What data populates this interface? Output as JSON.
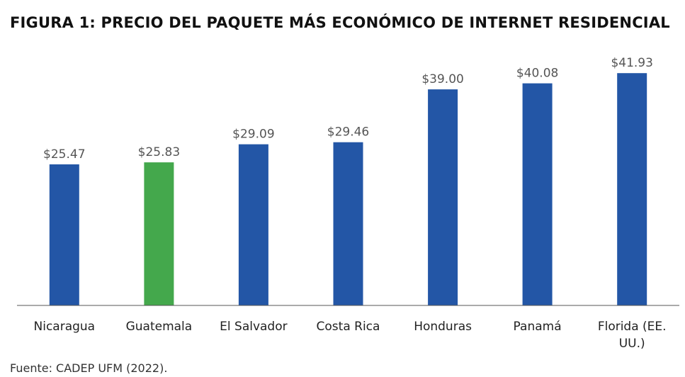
{
  "figure": {
    "title": "FIGURA 1: PRECIO DEL PAQUETE MÁS ECONÓMICO DE INTERNET RESIDENCIAL",
    "source": "Fuente: CADEP UFM (2022)."
  },
  "colors": {
    "default_bar": "#2356a6",
    "highlight_bar": "#44a84c",
    "axis": "#555555"
  },
  "chart_data": {
    "type": "bar",
    "title": "FIGURA 1: PRECIO DEL PAQUETE MÁS ECONÓMICO DE INTERNET RESIDENCIAL",
    "xlabel": "",
    "ylabel": "",
    "ylim": [
      0,
      44
    ],
    "grid": false,
    "highlight_category": "Guatemala",
    "categories": [
      "Nicaragua",
      "Guatemala",
      "El Salvador",
      "Costa Rica",
      "Honduras",
      "Panamá",
      "Florida (EE. UU.)"
    ],
    "category_lines": [
      [
        "Nicaragua"
      ],
      [
        "Guatemala"
      ],
      [
        "El Salvador"
      ],
      [
        "Costa Rica"
      ],
      [
        "Honduras"
      ],
      [
        "Panamá"
      ],
      [
        "Florida (EE.",
        "UU.)"
      ]
    ],
    "values": [
      25.47,
      25.83,
      29.09,
      29.46,
      39.0,
      40.08,
      41.93
    ],
    "value_labels": [
      "$25.47",
      "$25.83",
      "$29.09",
      "$29.46",
      "$39.00",
      "$40.08",
      "$41.93"
    ]
  }
}
